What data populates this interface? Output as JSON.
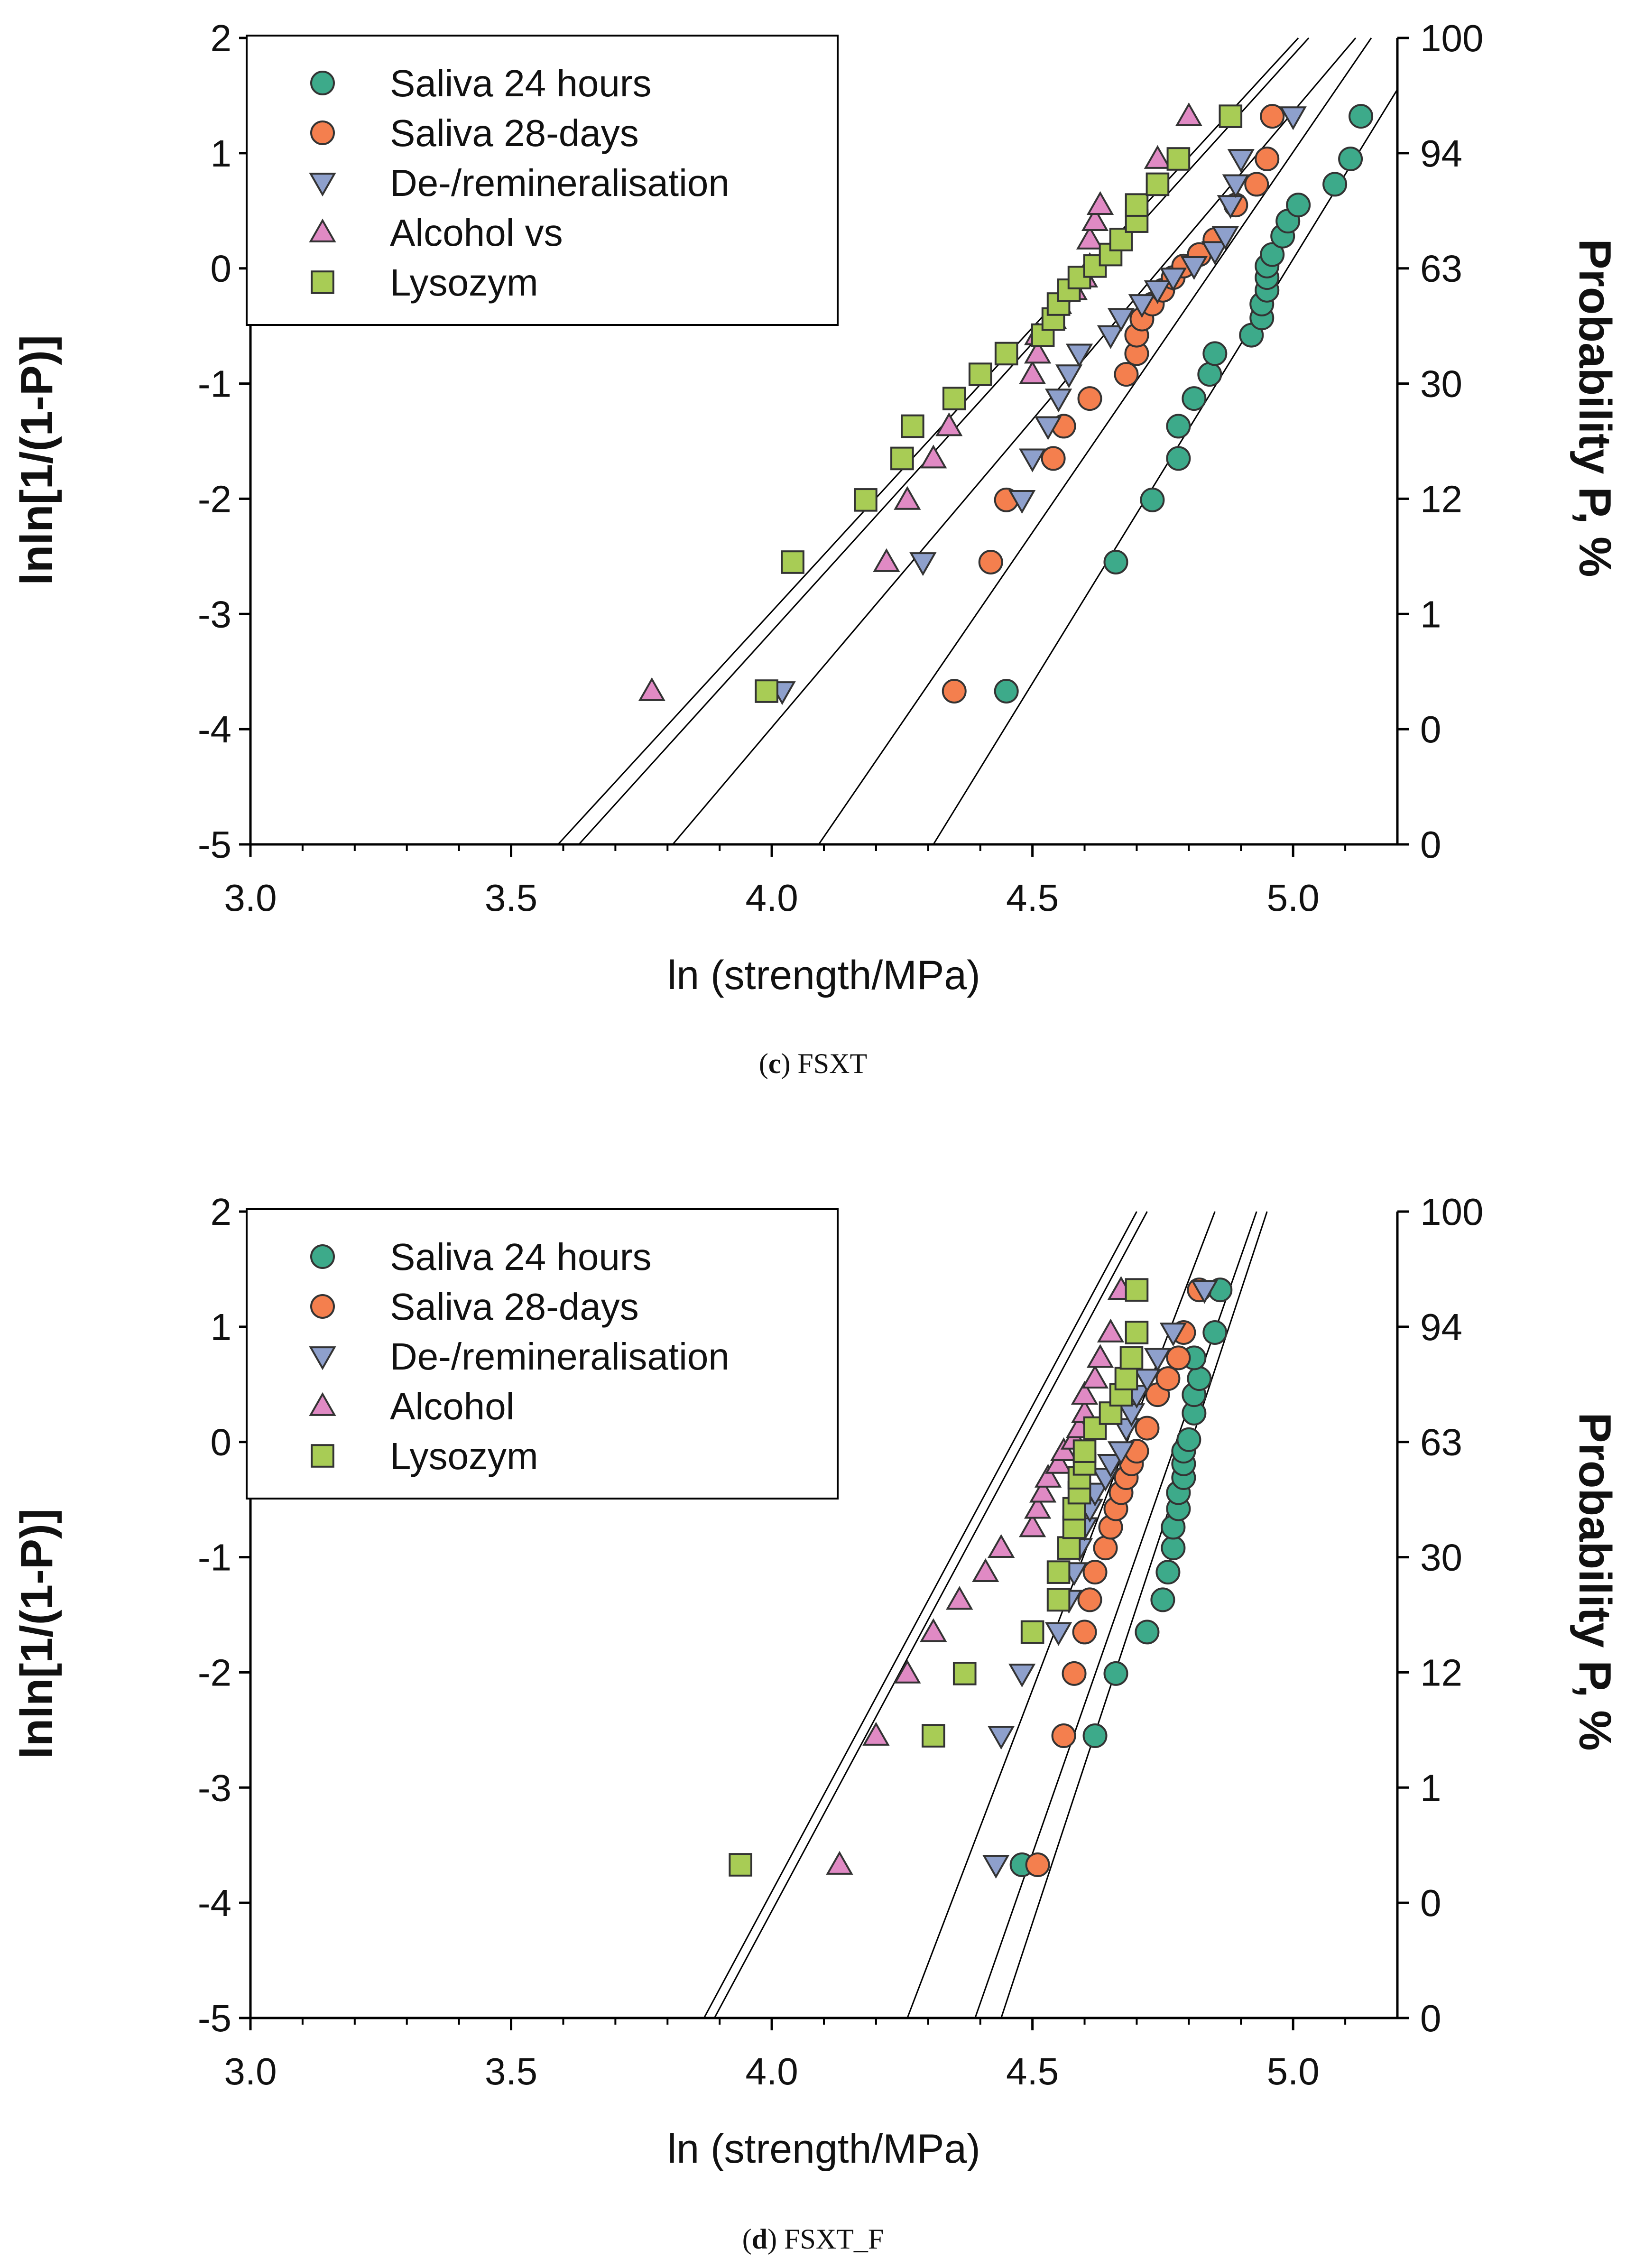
{
  "chart_data": [
    {
      "type": "scatter",
      "panel_label": "c",
      "caption_rest": ") FSXT",
      "xlabel": "ln (strength/MPa)",
      "ylabel": "lnln[1/(1-P)]",
      "y2label": "Probability P, %",
      "xlim": [
        3.0,
        5.2
      ],
      "ylim": [
        -5,
        2
      ],
      "xticks": [
        "3.0",
        "3.5",
        "4.0",
        "4.5",
        "5.0"
      ],
      "yticks": [
        "-5",
        "-4",
        "-3",
        "-2",
        "-1",
        "0",
        "1",
        "2"
      ],
      "y2ticks": [
        "0",
        "0",
        "1",
        "12",
        "30",
        "63",
        "94",
        "100"
      ],
      "legend": [
        "Saliva 24 hours",
        "Saliva 28-days",
        "De-/remineralisation",
        "Alcohol vs",
        "Lysozym"
      ],
      "series": [
        {
          "name": "Saliva 24 hours",
          "marker": "circle",
          "color": "#3daa8a",
          "fit": [
            [
              4.31,
              -5
            ],
            [
              5.22,
              1.7
            ]
          ],
          "points": [
            [
              4.45,
              -3.67
            ],
            [
              4.66,
              -2.55
            ],
            [
              4.73,
              -2.01
            ],
            [
              4.78,
              -1.65
            ],
            [
              4.78,
              -1.37
            ],
            [
              4.81,
              -1.13
            ],
            [
              4.84,
              -0.92
            ],
            [
              4.85,
              -0.74
            ],
            [
              4.92,
              -0.58
            ],
            [
              4.94,
              -0.43
            ],
            [
              4.94,
              -0.31
            ],
            [
              4.95,
              -0.19
            ],
            [
              4.95,
              -0.08
            ],
            [
              4.95,
              0.02
            ],
            [
              4.96,
              0.12
            ],
            [
              4.98,
              0.28
            ],
            [
              4.99,
              0.41
            ],
            [
              5.01,
              0.55
            ],
            [
              5.08,
              0.73
            ],
            [
              5.11,
              0.95
            ],
            [
              5.13,
              1.32
            ]
          ]
        },
        {
          "name": "Saliva 28-days",
          "marker": "circle",
          "color": "#f47f4e",
          "fit": [
            [
              4.09,
              -5
            ],
            [
              5.15,
              2.0
            ]
          ],
          "points": [
            [
              4.35,
              -3.67
            ],
            [
              4.42,
              -2.55
            ],
            [
              4.45,
              -2.01
            ],
            [
              4.54,
              -1.65
            ],
            [
              4.56,
              -1.37
            ],
            [
              4.61,
              -1.13
            ],
            [
              4.68,
              -0.92
            ],
            [
              4.7,
              -0.74
            ],
            [
              4.7,
              -0.58
            ],
            [
              4.71,
              -0.44
            ],
            [
              4.73,
              -0.31
            ],
            [
              4.75,
              -0.19
            ],
            [
              4.77,
              -0.08
            ],
            [
              4.79,
              0.02
            ],
            [
              4.82,
              0.12
            ],
            [
              4.85,
              0.25
            ],
            [
              4.89,
              0.55
            ],
            [
              4.93,
              0.73
            ],
            [
              4.95,
              0.95
            ],
            [
              4.96,
              1.32
            ]
          ]
        },
        {
          "name": "De-/remineralisation",
          "marker": "tri-down",
          "color": "#8ea0cc",
          "fit": [
            [
              3.81,
              -5
            ],
            [
              5.12,
              2.0
            ]
          ],
          "points": [
            [
              4.02,
              -3.67
            ],
            [
              4.29,
              -2.55
            ],
            [
              4.48,
              -2.01
            ],
            [
              4.5,
              -1.65
            ],
            [
              4.53,
              -1.37
            ],
            [
              4.55,
              -1.13
            ],
            [
              4.57,
              -0.92
            ],
            [
              4.59,
              -0.74
            ],
            [
              4.65,
              -0.58
            ],
            [
              4.67,
              -0.43
            ],
            [
              4.71,
              -0.31
            ],
            [
              4.74,
              -0.19
            ],
            [
              4.77,
              -0.08
            ],
            [
              4.81,
              0.02
            ],
            [
              4.85,
              0.15
            ],
            [
              4.87,
              0.28
            ],
            [
              4.88,
              0.55
            ],
            [
              4.89,
              0.73
            ],
            [
              4.9,
              0.95
            ],
            [
              5.0,
              1.32
            ]
          ]
        },
        {
          "name": "Alcohol vs",
          "marker": "tri-up",
          "color": "#e08ac4",
          "fit": [
            [
              3.63,
              -5
            ],
            [
              5.03,
              2.0
            ]
          ],
          "points": [
            [
              3.77,
              -3.67
            ],
            [
              4.22,
              -2.55
            ],
            [
              4.26,
              -2.01
            ],
            [
              4.31,
              -1.65
            ],
            [
              4.34,
              -1.37
            ],
            [
              4.5,
              -0.92
            ],
            [
              4.51,
              -0.74
            ],
            [
              4.51,
              -0.58
            ],
            [
              4.54,
              -0.44
            ],
            [
              4.55,
              -0.31
            ],
            [
              4.58,
              -0.19
            ],
            [
              4.6,
              -0.08
            ],
            [
              4.61,
              0.02
            ],
            [
              4.61,
              0.25
            ],
            [
              4.62,
              0.41
            ],
            [
              4.63,
              0.55
            ],
            [
              4.74,
              0.95
            ],
            [
              4.8,
              1.32
            ]
          ]
        },
        {
          "name": "Lysozym",
          "marker": "square",
          "color": "#a8cc55",
          "fit": [
            [
              3.59,
              -5
            ],
            [
              5.01,
              2.0
            ]
          ],
          "points": [
            [
              3.99,
              -3.67
            ],
            [
              4.04,
              -2.55
            ],
            [
              4.18,
              -2.01
            ],
            [
              4.25,
              -1.65
            ],
            [
              4.27,
              -1.37
            ],
            [
              4.35,
              -1.13
            ],
            [
              4.4,
              -0.92
            ],
            [
              4.45,
              -0.74
            ],
            [
              4.52,
              -0.58
            ],
            [
              4.54,
              -0.44
            ],
            [
              4.55,
              -0.31
            ],
            [
              4.57,
              -0.19
            ],
            [
              4.59,
              -0.08
            ],
            [
              4.62,
              0.02
            ],
            [
              4.65,
              0.12
            ],
            [
              4.67,
              0.25
            ],
            [
              4.7,
              0.41
            ],
            [
              4.7,
              0.55
            ],
            [
              4.74,
              0.73
            ],
            [
              4.78,
              0.95
            ],
            [
              4.88,
              1.32
            ]
          ]
        }
      ]
    },
    {
      "type": "scatter",
      "panel_label": "d",
      "caption_rest": ") FSXT_F",
      "xlabel": "ln (strength/MPa)",
      "ylabel": "lnln[1/(1-P)]",
      "y2label": "Probability P, %",
      "xlim": [
        3.0,
        5.2
      ],
      "ylim": [
        -5,
        2
      ],
      "xticks": [
        "3.0",
        "3.5",
        "4.0",
        "4.5",
        "5.0"
      ],
      "yticks": [
        "-5",
        "-4",
        "-3",
        "-2",
        "-1",
        "0",
        "1",
        "2"
      ],
      "y2ticks": [
        "0",
        "0",
        "1",
        "12",
        "30",
        "63",
        "94",
        "100"
      ],
      "legend": [
        "Saliva 24 hours",
        "Saliva 28-days",
        "De-/remineralisation",
        "Alcohol",
        "Lysozym"
      ],
      "series": [
        {
          "name": "Saliva 24 hours",
          "marker": "circle",
          "color": "#3daa8a",
          "fit": [
            [
              4.44,
              -5
            ],
            [
              4.95,
              2.0
            ]
          ],
          "points": [
            [
              4.48,
              -3.67
            ],
            [
              4.62,
              -2.55
            ],
            [
              4.66,
              -2.01
            ],
            [
              4.72,
              -1.65
            ],
            [
              4.75,
              -1.37
            ],
            [
              4.76,
              -1.13
            ],
            [
              4.77,
              -0.92
            ],
            [
              4.77,
              -0.74
            ],
            [
              4.78,
              -0.58
            ],
            [
              4.78,
              -0.44
            ],
            [
              4.79,
              -0.31
            ],
            [
              4.79,
              -0.19
            ],
            [
              4.79,
              -0.08
            ],
            [
              4.8,
              0.02
            ],
            [
              4.81,
              0.25
            ],
            [
              4.81,
              0.41
            ],
            [
              4.82,
              0.55
            ],
            [
              4.81,
              0.73
            ],
            [
              4.85,
              0.95
            ],
            [
              4.86,
              1.32
            ]
          ]
        },
        {
          "name": "Saliva 28-days",
          "marker": "circle",
          "color": "#f47f4e",
          "fit": [
            [
              4.39,
              -5
            ],
            [
              4.93,
              2.0
            ]
          ],
          "points": [
            [
              4.51,
              -3.67
            ],
            [
              4.56,
              -2.55
            ],
            [
              4.58,
              -2.01
            ],
            [
              4.6,
              -1.65
            ],
            [
              4.61,
              -1.37
            ],
            [
              4.62,
              -1.13
            ],
            [
              4.64,
              -0.92
            ],
            [
              4.65,
              -0.74
            ],
            [
              4.66,
              -0.58
            ],
            [
              4.67,
              -0.44
            ],
            [
              4.68,
              -0.31
            ],
            [
              4.69,
              -0.19
            ],
            [
              4.7,
              -0.08
            ],
            [
              4.72,
              0.12
            ],
            [
              4.74,
              0.41
            ],
            [
              4.76,
              0.55
            ],
            [
              4.78,
              0.73
            ],
            [
              4.79,
              0.95
            ],
            [
              4.82,
              1.32
            ]
          ]
        },
        {
          "name": "De-/remineralisation",
          "marker": "tri-down",
          "color": "#8ea0cc",
          "fit": [
            [
              4.26,
              -5
            ],
            [
              4.85,
              2.0
            ]
          ],
          "points": [
            [
              4.43,
              -3.67
            ],
            [
              4.44,
              -2.55
            ],
            [
              4.48,
              -2.01
            ],
            [
              4.55,
              -1.65
            ],
            [
              4.57,
              -1.37
            ],
            [
              4.58,
              -1.13
            ],
            [
              4.59,
              -0.92
            ],
            [
              4.6,
              -0.74
            ],
            [
              4.61,
              -0.58
            ],
            [
              4.62,
              -0.44
            ],
            [
              4.64,
              -0.31
            ],
            [
              4.65,
              -0.19
            ],
            [
              4.67,
              -0.08
            ],
            [
              4.68,
              0.12
            ],
            [
              4.69,
              0.25
            ],
            [
              4.7,
              0.41
            ],
            [
              4.72,
              0.55
            ],
            [
              4.74,
              0.73
            ],
            [
              4.77,
              0.95
            ],
            [
              4.83,
              1.32
            ]
          ]
        },
        {
          "name": "Alcohol",
          "marker": "tri-up",
          "color": "#e08ac4",
          "fit": [
            [
              3.89,
              -5
            ],
            [
              4.72,
              2.0
            ]
          ],
          "points": [
            [
              4.13,
              -3.67
            ],
            [
              4.2,
              -2.55
            ],
            [
              4.26,
              -2.01
            ],
            [
              4.31,
              -1.65
            ],
            [
              4.36,
              -1.37
            ],
            [
              4.41,
              -1.13
            ],
            [
              4.44,
              -0.92
            ],
            [
              4.5,
              -0.74
            ],
            [
              4.51,
              -0.58
            ],
            [
              4.52,
              -0.44
            ],
            [
              4.53,
              -0.31
            ],
            [
              4.55,
              -0.19
            ],
            [
              4.56,
              -0.08
            ],
            [
              4.58,
              0.02
            ],
            [
              4.59,
              0.12
            ],
            [
              4.6,
              0.25
            ],
            [
              4.6,
              0.41
            ],
            [
              4.62,
              0.55
            ],
            [
              4.63,
              0.73
            ],
            [
              4.65,
              0.95
            ],
            [
              4.67,
              1.32
            ]
          ]
        },
        {
          "name": "Lysozym",
          "marker": "square",
          "color": "#a8cc55",
          "fit": [
            [
              3.87,
              -5
            ],
            [
              4.7,
              2.0
            ]
          ],
          "points": [
            [
              3.94,
              -3.67
            ],
            [
              4.31,
              -2.55
            ],
            [
              4.37,
              -2.01
            ],
            [
              4.5,
              -1.65
            ],
            [
              4.55,
              -1.37
            ],
            [
              4.55,
              -1.13
            ],
            [
              4.57,
              -0.92
            ],
            [
              4.58,
              -0.74
            ],
            [
              4.58,
              -0.58
            ],
            [
              4.59,
              -0.44
            ],
            [
              4.59,
              -0.31
            ],
            [
              4.6,
              -0.19
            ],
            [
              4.6,
              -0.08
            ],
            [
              4.62,
              0.12
            ],
            [
              4.65,
              0.25
            ],
            [
              4.67,
              0.41
            ],
            [
              4.68,
              0.55
            ],
            [
              4.69,
              0.73
            ],
            [
              4.7,
              0.95
            ],
            [
              4.7,
              1.32
            ]
          ]
        }
      ]
    }
  ]
}
